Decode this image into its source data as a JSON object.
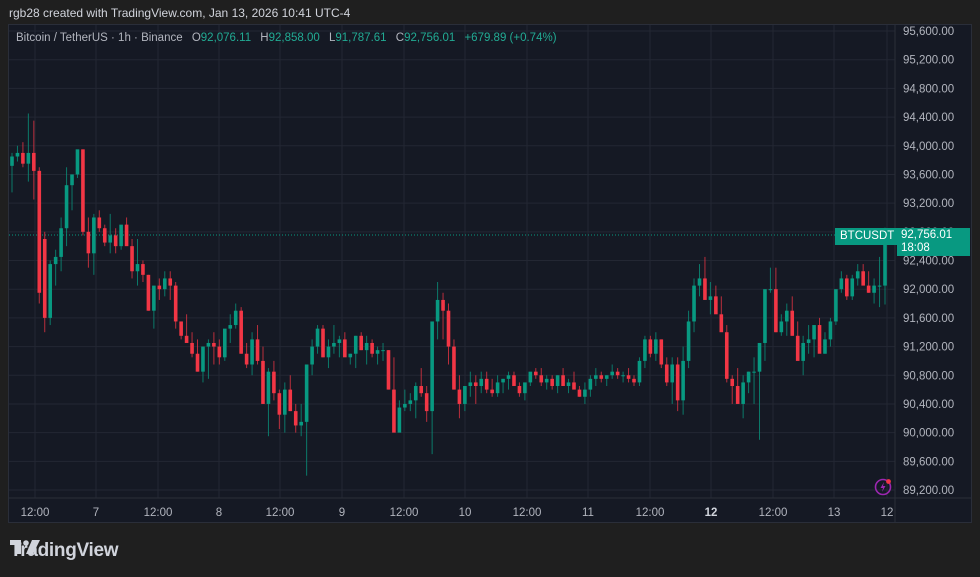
{
  "header": {
    "credit": "rgb28 created with TradingView.com, Jan 13, 2026 10:41 UTC-4"
  },
  "legend": {
    "symbol": "Bitcoin / TetherUS · 1h · Binance",
    "o_label": "O",
    "o": "92,076.11",
    "h_label": "H",
    "h": "92,858.00",
    "l_label": "L",
    "l": "91,787.61",
    "c_label": "C",
    "c": "92,756.01",
    "change": "+679.89 (+0.74%)"
  },
  "price_tag": {
    "symbol": "BTCUSDT",
    "price": "92,756.01",
    "countdown": "18:08"
  },
  "brand": {
    "name": "TradingView"
  },
  "colors": {
    "up": "#089981",
    "down": "#f23645",
    "background": "#151924",
    "grid": "#232733",
    "text": "#b2b5be",
    "alert": "#9c27b0"
  },
  "chart_data": {
    "type": "candlestick",
    "title": "Bitcoin / TetherUS · 1h · Binance",
    "xlabel": "",
    "ylabel": "",
    "ylim": [
      89000,
      95800
    ],
    "y_ticks": [
      95600,
      95200,
      94800,
      94400,
      94000,
      93600,
      93200,
      92800,
      92400,
      92000,
      91600,
      91200,
      90800,
      90400,
      90000,
      89600,
      89200
    ],
    "y_tick_labels": [
      "95,600.00",
      "95,200.00",
      "94,800.00",
      "94,400.00",
      "94,000.00",
      "93,600.00",
      "93,200.00",
      "92,800.00",
      "92,400.00",
      "92,000.00",
      "91,600.00",
      "91,200.00",
      "90,800.00",
      "90,400.00",
      "90,000.00",
      "89,600.00",
      "89,200.00"
    ],
    "x_ticks": [
      {
        "label": "12:00",
        "x": 35,
        "bold": false
      },
      {
        "label": "7",
        "x": 96,
        "bold": false
      },
      {
        "label": "12:00",
        "x": 158,
        "bold": false
      },
      {
        "label": "8",
        "x": 219,
        "bold": false
      },
      {
        "label": "12:00",
        "x": 280,
        "bold": false
      },
      {
        "label": "9",
        "x": 342,
        "bold": false
      },
      {
        "label": "12:00",
        "x": 404,
        "bold": false
      },
      {
        "label": "10",
        "x": 465,
        "bold": false
      },
      {
        "label": "12:00",
        "x": 527,
        "bold": false
      },
      {
        "label": "11",
        "x": 588,
        "bold": false
      },
      {
        "label": "12:00",
        "x": 650,
        "bold": false
      },
      {
        "label": "12",
        "x": 711,
        "bold": true
      },
      {
        "label": "12:00",
        "x": 773,
        "bold": false
      },
      {
        "label": "13",
        "x": 834,
        "bold": false
      },
      {
        "label": "12",
        "x": 887,
        "bold": false
      }
    ],
    "last_price": 92756.01,
    "candles": [
      [
        93720,
        93900,
        93350,
        93850
      ],
      [
        93850,
        94000,
        93780,
        93900
      ],
      [
        93900,
        94050,
        93700,
        93750
      ],
      [
        93750,
        94450,
        93500,
        93900
      ],
      [
        93900,
        94350,
        93250,
        93650
      ],
      [
        93650,
        93700,
        91800,
        91950
      ],
      [
        92700,
        92800,
        91400,
        91600
      ],
      [
        91600,
        92400,
        91500,
        92350
      ],
      [
        92350,
        92550,
        92050,
        92450
      ],
      [
        92450,
        93000,
        92250,
        92850
      ],
      [
        92850,
        93700,
        92600,
        93450
      ],
      [
        93450,
        93600,
        93100,
        93600
      ],
      [
        93600,
        93850,
        93550,
        93950
      ],
      [
        93950,
        93950,
        92750,
        92800
      ],
      [
        92800,
        93000,
        92300,
        92500
      ],
      [
        92500,
        93050,
        92200,
        93000
      ],
      [
        93000,
        93100,
        92800,
        92850
      ],
      [
        92850,
        92900,
        92600,
        92650
      ],
      [
        92650,
        93050,
        92500,
        92750
      ],
      [
        92750,
        92850,
        92500,
        92600
      ],
      [
        92600,
        92850,
        92550,
        92900
      ],
      [
        92900,
        93000,
        92850,
        92600
      ],
      [
        92600,
        92700,
        92150,
        92250
      ],
      [
        92250,
        92700,
        92050,
        92350
      ],
      [
        92350,
        92400,
        92100,
        92200
      ],
      [
        92200,
        92200,
        91700,
        91700
      ],
      [
        91700,
        92000,
        91450,
        92050
      ],
      [
        92050,
        92150,
        91850,
        92000
      ],
      [
        92000,
        92250,
        91900,
        92150
      ],
      [
        92150,
        92250,
        91850,
        92050
      ],
      [
        92050,
        92100,
        91450,
        91550
      ],
      [
        91550,
        91550,
        91300,
        91350
      ],
      [
        91350,
        91650,
        91250,
        91250
      ],
      [
        91250,
        91400,
        91050,
        91100
      ],
      [
        91100,
        91300,
        90850,
        90850
      ],
      [
        90850,
        91200,
        90700,
        91200
      ],
      [
        91200,
        91300,
        90750,
        91250
      ],
      [
        91250,
        91400,
        90950,
        91200
      ],
      [
        91200,
        91300,
        90950,
        91050
      ],
      [
        91050,
        91300,
        91000,
        91450
      ],
      [
        91450,
        91650,
        91250,
        91500
      ],
      [
        91500,
        91800,
        91450,
        91700
      ],
      [
        91700,
        91750,
        91100,
        91100
      ],
      [
        91100,
        91250,
        90900,
        90950
      ],
      [
        90950,
        91400,
        90800,
        91300
      ],
      [
        91300,
        91500,
        90950,
        91000
      ],
      [
        91000,
        91200,
        90400,
        90400
      ],
      [
        90400,
        90900,
        89950,
        90850
      ],
      [
        90850,
        91000,
        90450,
        90550
      ],
      [
        90550,
        90600,
        90050,
        90250
      ],
      [
        90250,
        90700,
        90000,
        90600
      ],
      [
        90600,
        90800,
        90300,
        90300
      ],
      [
        90300,
        90400,
        90000,
        90100
      ],
      [
        90100,
        90400,
        89950,
        90150
      ],
      [
        90150,
        90950,
        89400,
        90950
      ],
      [
        90950,
        91300,
        90800,
        91200
      ],
      [
        91200,
        91500,
        91100,
        91450
      ],
      [
        91450,
        91500,
        91050,
        91050
      ],
      [
        91050,
        91300,
        90900,
        91200
      ],
      [
        91200,
        91500,
        91100,
        91250
      ],
      [
        91250,
        91350,
        91050,
        91300
      ],
      [
        91300,
        91400,
        91150,
        91050
      ],
      [
        91050,
        91100,
        90950,
        91100
      ],
      [
        91100,
        91350,
        90900,
        91350
      ],
      [
        91350,
        91400,
        91150,
        91150
      ],
      [
        91150,
        91350,
        90950,
        91250
      ],
      [
        91250,
        91300,
        91050,
        91100
      ],
      [
        91100,
        91200,
        90950,
        91150
      ],
      [
        91150,
        91250,
        91000,
        91150
      ],
      [
        91150,
        91150,
        90600,
        90600
      ],
      [
        90600,
        91050,
        90100,
        90000
      ],
      [
        90000,
        90450,
        90050,
        90350
      ],
      [
        90350,
        90600,
        90300,
        90400
      ],
      [
        90400,
        90550,
        90300,
        90450
      ],
      [
        90450,
        90700,
        90200,
        90650
      ],
      [
        90650,
        90900,
        90500,
        90550
      ],
      [
        90550,
        90650,
        90150,
        90300
      ],
      [
        90300,
        91200,
        89700,
        91550
      ],
      [
        91550,
        92100,
        91300,
        91850
      ],
      [
        91850,
        91950,
        91300,
        91700
      ],
      [
        91700,
        91800,
        90950,
        91200
      ],
      [
        91200,
        91300,
        90600,
        90600
      ],
      [
        90600,
        90800,
        90200,
        90400
      ],
      [
        90400,
        90500,
        90300,
        90650
      ],
      [
        90650,
        90850,
        90500,
        90700
      ],
      [
        90700,
        90800,
        90400,
        90650
      ],
      [
        90650,
        90850,
        90550,
        90750
      ],
      [
        90750,
        90850,
        90550,
        90600
      ],
      [
        90600,
        90750,
        90500,
        90550
      ],
      [
        90550,
        90800,
        90500,
        90700
      ],
      [
        90700,
        90750,
        90550,
        90750
      ],
      [
        90750,
        90850,
        90600,
        90800
      ],
      [
        90800,
        90850,
        90650,
        90650
      ],
      [
        90650,
        90700,
        90500,
        90550
      ],
      [
        90550,
        90700,
        90450,
        90700
      ],
      [
        90700,
        90800,
        90650,
        90850
      ],
      [
        90850,
        90900,
        90750,
        90800
      ],
      [
        90800,
        90900,
        90650,
        90700
      ],
      [
        90700,
        90800,
        90600,
        90750
      ],
      [
        90750,
        90800,
        90600,
        90650
      ],
      [
        90650,
        90800,
        90550,
        90800
      ],
      [
        90800,
        90900,
        90650,
        90650
      ],
      [
        90650,
        90750,
        90550,
        90700
      ],
      [
        90700,
        90850,
        90650,
        90600
      ],
      [
        90600,
        90650,
        90500,
        90500
      ],
      [
        90500,
        90700,
        90400,
        90600
      ],
      [
        90600,
        90800,
        90500,
        90750
      ],
      [
        90750,
        90900,
        90650,
        90800
      ],
      [
        90800,
        90850,
        90700,
        90750
      ],
      [
        90750,
        90800,
        90650,
        90800
      ],
      [
        90800,
        90950,
        90750,
        90850
      ],
      [
        90850,
        90900,
        90750,
        90800
      ],
      [
        90800,
        90850,
        90700,
        90800
      ],
      [
        90800,
        90900,
        90700,
        90750
      ],
      [
        90750,
        90800,
        90650,
        90700
      ],
      [
        90700,
        91050,
        90650,
        91000
      ],
      [
        91000,
        91350,
        90900,
        91300
      ],
      [
        91300,
        91350,
        91050,
        91100
      ],
      [
        91100,
        91400,
        91000,
        91300
      ],
      [
        91300,
        91300,
        90900,
        90950
      ],
      [
        90950,
        91050,
        90650,
        90700
      ],
      [
        90700,
        91050,
        90400,
        90950
      ],
      [
        90950,
        91050,
        90300,
        90450
      ],
      [
        90450,
        91200,
        90250,
        91000
      ],
      [
        91000,
        91700,
        90900,
        91550
      ],
      [
        91550,
        92150,
        91400,
        92050
      ],
      [
        92050,
        92350,
        91900,
        92150
      ],
      [
        92150,
        92450,
        92100,
        91850
      ],
      [
        91850,
        92100,
        91650,
        91900
      ],
      [
        91900,
        92050,
        91700,
        91650
      ],
      [
        91650,
        91900,
        91500,
        91400
      ],
      [
        91400,
        91500,
        90700,
        90750
      ],
      [
        90750,
        90800,
        90400,
        90650
      ],
      [
        90650,
        90900,
        90400,
        90400
      ],
      [
        90400,
        90800,
        90200,
        90700
      ],
      [
        90700,
        90850,
        90550,
        90850
      ],
      [
        90850,
        91050,
        90400,
        90850
      ],
      [
        90850,
        91250,
        89900,
        91250
      ],
      [
        91250,
        91700,
        91000,
        92000
      ],
      [
        92000,
        92300,
        91950,
        92000
      ],
      [
        92000,
        92300,
        91400,
        91400
      ],
      [
        91400,
        91650,
        91350,
        91550
      ],
      [
        91550,
        91800,
        91350,
        91700
      ],
      [
        91700,
        91900,
        91350,
        91350
      ],
      [
        91350,
        91550,
        91100,
        91000
      ],
      [
        91000,
        91350,
        90800,
        91250
      ],
      [
        91250,
        91500,
        91100,
        91300
      ],
      [
        91300,
        91450,
        91050,
        91500
      ],
      [
        91500,
        91600,
        91150,
        91100
      ],
      [
        91100,
        91400,
        91100,
        91300
      ],
      [
        91300,
        91600,
        91200,
        91550
      ],
      [
        91550,
        91900,
        91500,
        92000
      ],
      [
        92000,
        92250,
        91950,
        92150
      ],
      [
        92150,
        92200,
        91850,
        91900
      ],
      [
        91900,
        92200,
        91850,
        92150
      ],
      [
        92150,
        92350,
        92050,
        92250
      ],
      [
        92250,
        92350,
        92100,
        92050
      ],
      [
        92050,
        92250,
        91950,
        91950
      ],
      [
        91950,
        92150,
        91800,
        92050
      ],
      [
        92050,
        92450,
        91750,
        92050
      ],
      [
        92050,
        92858,
        91787,
        92756
      ]
    ]
  }
}
